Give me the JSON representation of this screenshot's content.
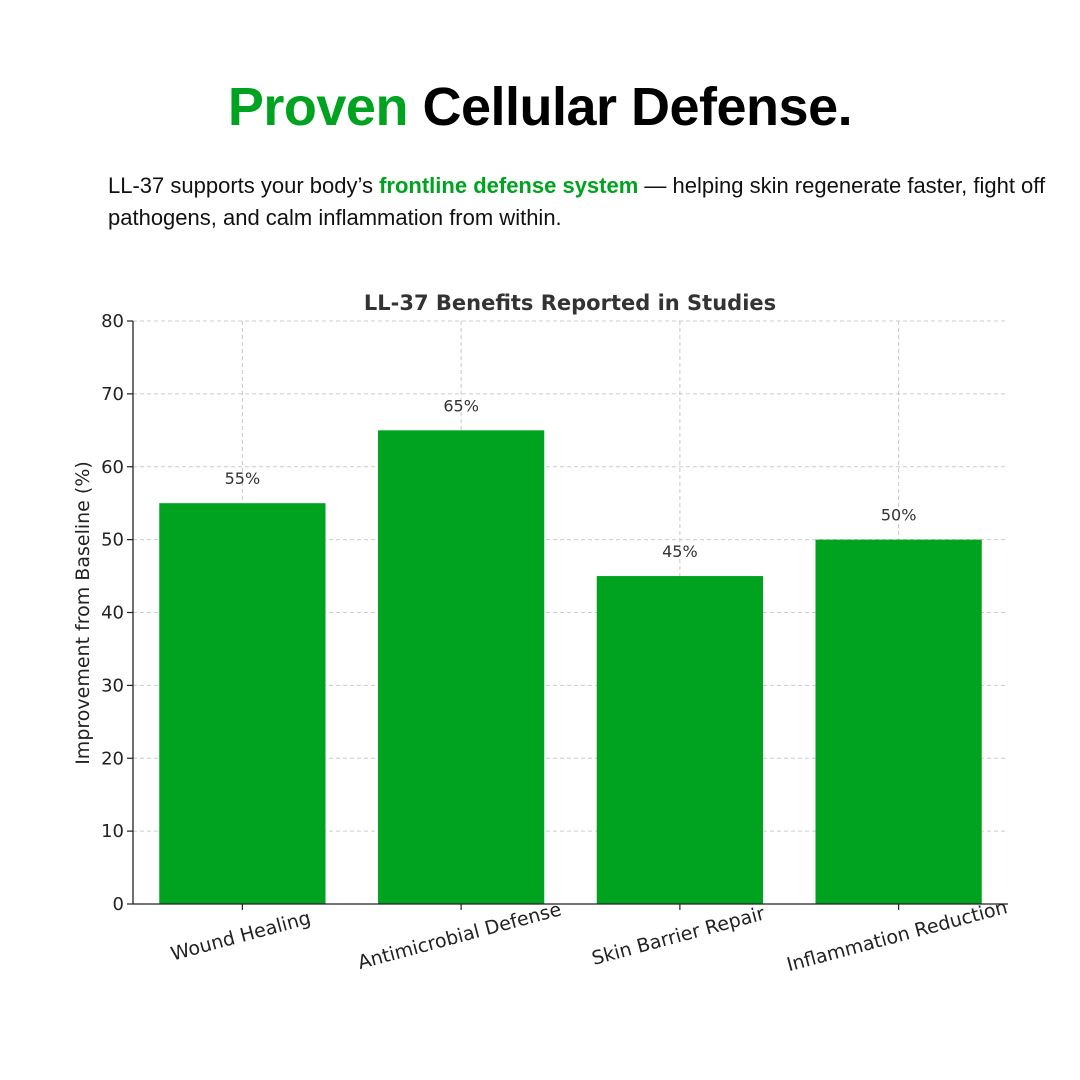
{
  "headline": {
    "accent": "Proven",
    "rest": " Cellular Defense."
  },
  "intro": {
    "before": "LL-37 supports your body’s ",
    "highlight": "frontline defense system",
    "after": " — helping skin regenerate faster, fight off pathogens, and calm inflammation from within."
  },
  "colors": {
    "accent": "#00a31f",
    "bar": "#00a31f"
  },
  "chart_data": {
    "type": "bar",
    "title": "LL-37 Benefits Reported in Studies",
    "xlabel": "",
    "ylabel": "Improvement from Baseline (%)",
    "categories": [
      "Wound Healing",
      "Antimicrobial Defense",
      "Skin Barrier Repair",
      "Inflammation Reduction"
    ],
    "values": [
      55,
      65,
      45,
      50
    ],
    "value_labels": [
      "55%",
      "65%",
      "45%",
      "50%"
    ],
    "ylim": [
      0,
      80
    ],
    "yticks": [
      0,
      10,
      20,
      30,
      40,
      50,
      60,
      70,
      80
    ],
    "grid": true,
    "legend": "none"
  }
}
